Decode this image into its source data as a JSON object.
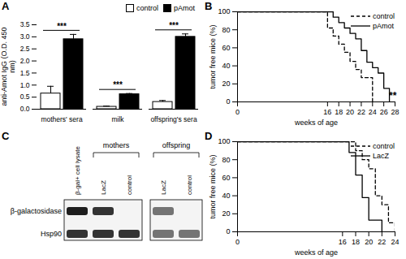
{
  "chart_data": [
    {
      "panel": "A",
      "type": "bar",
      "y_label": "anti-Amot IgG (O.D. 450 nm)",
      "categories": [
        "mothers' sera",
        "milk",
        "offspring's sera"
      ],
      "series": [
        {
          "name": "control",
          "color": "#ffffff",
          "values": [
            0.65,
            0.1,
            0.3
          ],
          "errors": [
            0.3,
            0.03,
            0.06
          ]
        },
        {
          "name": "pAmot",
          "color": "#000000",
          "values": [
            2.9,
            0.62,
            3.0
          ],
          "errors": [
            0.2,
            0.03,
            0.12
          ]
        }
      ],
      "significance": [
        "***",
        "***",
        "***"
      ],
      "ylim": [
        0,
        3.5
      ],
      "yticks": [
        {
          "value": 0,
          "label": "0.0"
        },
        {
          "value": 0.5,
          "label": "0.5"
        },
        {
          "value": 1,
          "label": "1.0"
        },
        {
          "value": 1.5,
          "label": "1.5"
        },
        {
          "value": 2,
          "label": "2.0"
        },
        {
          "value": 2.5,
          "label": "2.5"
        },
        {
          "value": 3,
          "label": "3.0"
        },
        {
          "value": 3.5,
          "label": "3.5"
        }
      ],
      "legend": "top-right"
    },
    {
      "panel": "B",
      "type": "line",
      "x_label": "weeks of age",
      "y_label": "tumor free mice (%)",
      "series": [
        {
          "name": "control",
          "color": "#000000",
          "line_style": "dashed",
          "x": [
            0,
            16,
            17,
            18,
            19,
            20,
            21,
            22,
            24
          ],
          "values": [
            100,
            82,
            73,
            64,
            55,
            45,
            36,
            27,
            0
          ]
        },
        {
          "name": "pAmot",
          "color": "#000000",
          "line_style": "solid",
          "x": [
            0,
            17,
            18,
            19,
            20,
            21,
            22,
            23,
            24,
            25,
            26,
            27
          ],
          "values": [
            100,
            94,
            88,
            82,
            76,
            70,
            57,
            44,
            38,
            32,
            15,
            0
          ]
        }
      ],
      "annotations": [
        {
          "text": "**",
          "x": 27.6,
          "y": 3
        }
      ],
      "xlim": [
        0,
        28
      ],
      "xticks": [
        0,
        16,
        18,
        20,
        22,
        24,
        26,
        28
      ],
      "ylim": [
        0,
        100
      ],
      "yticks": [
        0,
        20,
        40,
        60,
        80,
        100
      ],
      "legend": "top-right"
    },
    {
      "panel": "C",
      "type": "western_blot",
      "rows": [
        "β-galactosidase",
        "Hsp90"
      ],
      "groups": [
        "mothers",
        "offspring"
      ],
      "lanes": [
        {
          "label": "β-gal+ cell lysate",
          "group": null
        },
        {
          "label": "LacZ",
          "group": "mothers"
        },
        {
          "label": "control",
          "group": "mothers"
        },
        {
          "label": "LacZ",
          "group": "offspring"
        },
        {
          "label": "control",
          "group": "offspring"
        }
      ],
      "band_intensity": [
        [
          1,
          0.9,
          0,
          0.6,
          0
        ],
        [
          0.9,
          0.9,
          0.9,
          0.6,
          0.6
        ]
      ]
    },
    {
      "panel": "D",
      "type": "line",
      "x_label": "weeks of age",
      "y_label": "tumor free mice (%)",
      "series": [
        {
          "name": "control",
          "color": "#000000",
          "line_style": "dashed",
          "x": [
            0,
            18,
            19,
            20,
            21,
            22,
            23,
            24
          ],
          "values": [
            100,
            90,
            80,
            70,
            40,
            30,
            10,
            0
          ]
        },
        {
          "name": "LacZ",
          "color": "#000000",
          "line_style": "solid",
          "x": [
            0,
            17,
            18,
            19,
            20,
            22
          ],
          "values": [
            100,
            88,
            63,
            38,
            13,
            0
          ]
        }
      ],
      "xlim": [
        0,
        24
      ],
      "xticks": [
        0,
        16,
        18,
        20,
        22,
        24
      ],
      "ylim": [
        0,
        100
      ],
      "yticks": [
        0,
        20,
        40,
        60,
        80,
        100
      ],
      "legend": "top-right"
    }
  ]
}
